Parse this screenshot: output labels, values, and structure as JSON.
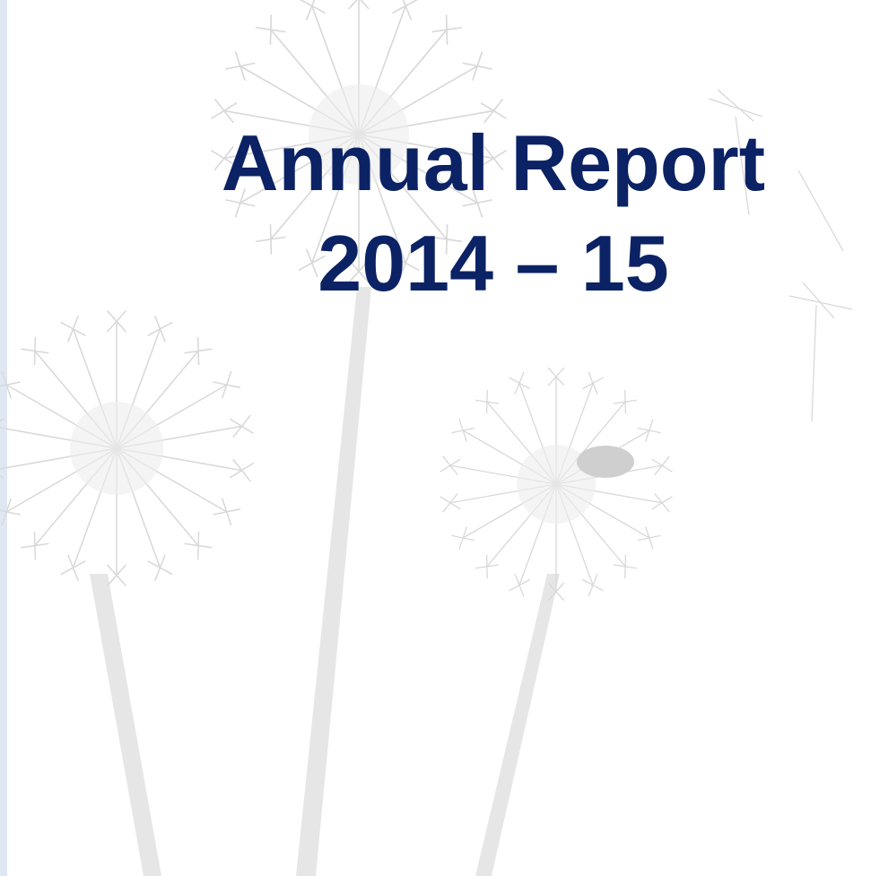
{
  "cover": {
    "title_line1": "Annual Report",
    "title_line2": "2014 – 15"
  }
}
